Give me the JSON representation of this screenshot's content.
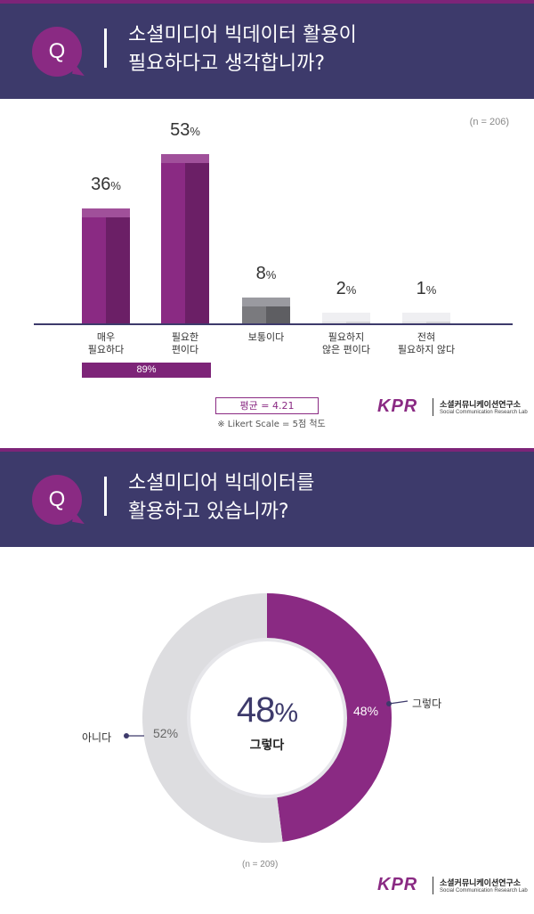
{
  "q1": {
    "badge": "Q",
    "title": "소셜미디어 빅데이터 활용이\n필요하다고 생각합니까?",
    "sample": "(n = 206)",
    "summary_label": "89%",
    "average_label": "평균 = 4.21",
    "scale_note": "※ Likert Scale = 5점 척도"
  },
  "q2": {
    "badge": "Q",
    "title": "소셜미디어 빅데이터를\n활용하고 있습니까?",
    "sample": "(n = 209)",
    "center_value": "48",
    "center_sign": "%",
    "center_label": "그렇다",
    "yes_label": "그렇다",
    "no_label": "아니다",
    "yes_pct": "48%",
    "no_pct": "52%"
  },
  "logo": {
    "mark": "KPR",
    "name": "소셜커뮤니케이션연구소",
    "sub": "Social Communication Research Lab"
  },
  "colors": {
    "header_bg": "#3d3a6b",
    "accent": "#8a2a83",
    "bar_front": "#8a2a83",
    "bar_side": "#6b1f66",
    "neutral_front": "#7a7a7e",
    "neutral_side": "#5e5e62",
    "light_front": "#e3e3e6",
    "light_side": "#d2d2d6",
    "pie_no": "#dddde0",
    "pie_yes": "#8a2a83"
  },
  "chart_data": [
    {
      "type": "bar",
      "categories": [
        "매우\n필요하다",
        "필요한\n편이다",
        "보통이다",
        "필요하지\n않은 편이다",
        "전혀\n필요하지 않다"
      ],
      "values": [
        36,
        53,
        8,
        2,
        1
      ],
      "value_labels": [
        "36",
        "53",
        "8",
        "2",
        "1"
      ],
      "unit": "%",
      "ylim": [
        0,
        60
      ],
      "grid": false
    },
    {
      "type": "pie",
      "categories": [
        "그렇다",
        "아니다"
      ],
      "values": [
        48,
        52
      ],
      "donut": true
    }
  ]
}
